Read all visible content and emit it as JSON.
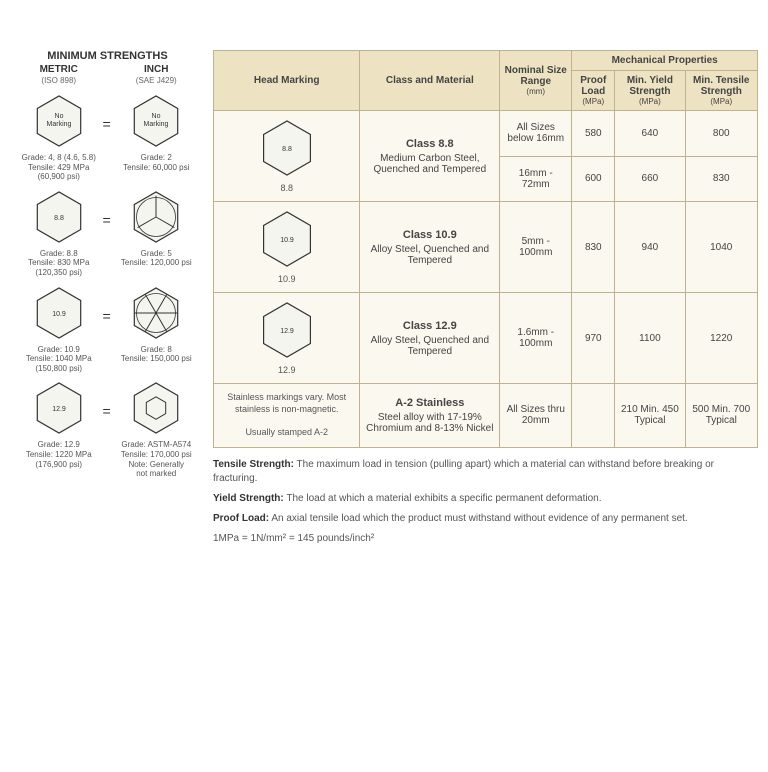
{
  "left": {
    "title": "MINIMUM STRENGTHS",
    "metric_label": "METRIC",
    "metric_sub": "(ISO 898)",
    "inch_label": "INCH",
    "inch_sub": "(SAE J429)",
    "rows": [
      {
        "m_hex": "No\nMarking",
        "i_hex": "No\nMarking",
        "i_style": "plain",
        "m_info": "Grade: 4, 8 (4.6, 5.8)\nTensile: 429 MPa\n(60,900 psi)",
        "i_info": "Grade: 2\nTensile: 60,000 psi"
      },
      {
        "m_hex": "8.8",
        "i_hex": "",
        "i_style": "radial3",
        "m_info": "Grade: 8.8\nTensile: 830 MPa\n(120,350 psi)",
        "i_info": "Grade: 5\nTensile: 120,000 psi"
      },
      {
        "m_hex": "10.9",
        "i_hex": "",
        "i_style": "radial6",
        "m_info": "Grade: 10.9\nTensile: 1040 MPa\n(150,800 psi)",
        "i_info": "Grade: 8\nTensile: 150,000 psi"
      },
      {
        "m_hex": "12.9",
        "i_hex": "",
        "i_style": "smallhex",
        "m_info": "Grade: 12.9\nTensile: 1220 MPa\n(176,900 psi)",
        "i_info": "Grade: ASTM-A574\nTensile: 170,000 psi\nNote: Generally\nnot marked"
      }
    ]
  },
  "table": {
    "headers": {
      "head_marking": "Head Marking",
      "class_material": "Class and Material",
      "nominal": "Nominal Size Range",
      "nominal_sub": "(mm)",
      "mech": "Mechanical Properties",
      "proof": "Proof Load",
      "proof_sub": "(MPa)",
      "yield": "Min. Yield Strength",
      "yield_sub": "(MPa)",
      "tensile": "Min. Tensile Strength",
      "tensile_sub": "(MPa)"
    },
    "rows": [
      {
        "hex": "8.8",
        "cls": "Class 8.8",
        "mat": "Medium Carbon Steel, Quenched and Tempered",
        "sub": [
          {
            "size": "All Sizes below 16mm",
            "proof": "580",
            "yield": "640",
            "tensile": "800"
          },
          {
            "size": "16mm - 72mm",
            "proof": "600",
            "yield": "660",
            "tensile": "830"
          }
        ]
      },
      {
        "hex": "10.9",
        "cls": "Class 10.9",
        "mat": "Alloy Steel, Quenched and Tempered",
        "sub": [
          {
            "size": "5mm - 100mm",
            "proof": "830",
            "yield": "940",
            "tensile": "1040"
          }
        ]
      },
      {
        "hex": "12.9",
        "cls": "Class 12.9",
        "mat": "Alloy Steel, Quenched and Tempered",
        "sub": [
          {
            "size": "1.6mm - 100mm",
            "proof": "970",
            "yield": "1100",
            "tensile": "1220"
          }
        ]
      },
      {
        "note": "Stainless markings vary. Most stainless is non-magnetic.\n\nUsually stamped A-2",
        "cls": "A-2 Stainless",
        "mat": "Steel alloy with 17-19% Chromium and 8-13% Nickel",
        "sub": [
          {
            "size": "All Sizes thru 20mm",
            "proof": "",
            "yield": "210 Min. 450 Typical",
            "tensile": "500 Min. 700 Typical"
          }
        ]
      }
    ]
  },
  "defs": {
    "tensile_l": "Tensile Strength:",
    "tensile_t": " The maximum load in tension (pulling apart) which a material can withstand before breaking or fracturing.",
    "yield_l": "Yield Strength:",
    "yield_t": " The load at which a material exhibits a specific permanent deformation.",
    "proof_l": "Proof Load:",
    "proof_t": " An axial tensile load which the product must withstand without evidence of any permanent set.",
    "conv": "1MPa = 1N/mm² = 145 pounds/inch²"
  }
}
